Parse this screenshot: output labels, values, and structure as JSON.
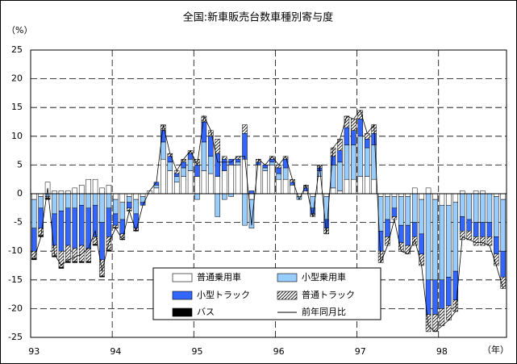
{
  "chart_data": {
    "type": "bar",
    "stacked": true,
    "title": "全国:新車販売台数車種別寄与度",
    "y_label": "（%）",
    "x_label": "（年）",
    "categories": [
      "93",
      null,
      null,
      null,
      null,
      null,
      null,
      null,
      null,
      null,
      null,
      null,
      "94",
      null,
      null,
      null,
      null,
      null,
      null,
      null,
      null,
      null,
      null,
      null,
      "95",
      null,
      null,
      null,
      null,
      null,
      null,
      null,
      null,
      null,
      null,
      null,
      "96",
      null,
      null,
      null,
      null,
      null,
      null,
      null,
      null,
      null,
      null,
      null,
      "97",
      null,
      null,
      null,
      null,
      null,
      null,
      null,
      null,
      null,
      null,
      null,
      "98",
      null,
      null,
      null,
      null,
      null,
      null,
      null,
      null,
      null
    ],
    "ylim": [
      -25,
      25
    ],
    "yticks": [
      -25,
      -20,
      -15,
      -10,
      -5,
      0,
      5,
      10,
      15,
      20,
      25
    ],
    "grid": true,
    "series": [
      {
        "name": "普通乗用車",
        "color": "#ffffff",
        "values": [
          -1,
          -0.5,
          2,
          0.5,
          0.5,
          0.5,
          1,
          1.5,
          2.5,
          2.5,
          1,
          1.5,
          -1,
          -1.5,
          -0.5,
          -1,
          -0.5,
          0.5,
          1,
          6,
          4,
          2,
          3,
          4,
          3,
          4,
          3.5,
          3,
          4,
          5,
          5,
          6,
          -1,
          5,
          4,
          5,
          2.5,
          2.5,
          1.5,
          -0.5,
          0.5,
          -0.5,
          3,
          -0.5,
          1,
          0.5,
          2.5,
          2.5,
          3,
          3,
          2.5,
          -0.5,
          -0.5,
          -0.5,
          -0.5,
          -0.5,
          1,
          -1,
          1,
          -1,
          -2,
          -2,
          -1.5,
          0.5,
          0,
          0.5,
          0.5,
          0,
          -0.5,
          -1
        ]
      },
      {
        "name": "小型乗用車",
        "color": "#99ccff",
        "values": [
          -5,
          -2,
          -0.5,
          -3.5,
          -3,
          -2.5,
          -2.5,
          -2,
          -2.5,
          -2,
          -5,
          -2.5,
          -2.5,
          -3,
          -1,
          -2.5,
          -1,
          0,
          0.5,
          3,
          1.5,
          1,
          1.5,
          2,
          -1,
          5,
          3,
          -4,
          -1,
          -0.5,
          0.5,
          -5.5,
          -5,
          0,
          0.5,
          0.5,
          1,
          2,
          0,
          -0.5,
          0,
          -2,
          1,
          -4,
          4,
          5,
          6,
          6,
          7,
          5,
          6,
          -6,
          -4,
          -2,
          -5,
          -5,
          -5,
          -6,
          -15,
          -14,
          -13,
          -12.5,
          -12,
          -4,
          -4.5,
          -5,
          -5,
          -5,
          -7,
          -9
        ]
      },
      {
        "name": "小型トラック",
        "color": "#3366ff",
        "values": [
          -4,
          -3.5,
          0,
          -5.5,
          -7,
          -6.5,
          -7,
          -7,
          -7,
          -5.5,
          -6.5,
          -5,
          -2,
          -2.5,
          -1,
          -2.5,
          -0.5,
          0,
          0.5,
          2,
          1,
          0.5,
          1,
          1,
          2,
          3.5,
          3.5,
          4,
          2,
          1,
          0.5,
          4.5,
          0.5,
          0.5,
          0.5,
          0.5,
          1,
          1.5,
          0.5,
          0,
          0.5,
          -1,
          0.5,
          -1.5,
          1.5,
          2,
          3,
          2.5,
          3,
          1.5,
          2,
          -3.5,
          -3,
          -1.5,
          -3,
          -3.5,
          -2.5,
          -3.5,
          -6,
          -6,
          -5,
          -5,
          -5,
          -2.5,
          -2,
          -2.5,
          -2.5,
          -2.5,
          -3,
          -4.5
        ]
      },
      {
        "name": "普通トラック",
        "color": "#ffffff",
        "hatch": true,
        "values": [
          -1.3,
          -1.3,
          -0.3,
          -1.8,
          -2.8,
          -2.8,
          -2.3,
          -2.8,
          -2.3,
          -1.3,
          -2.8,
          -2.3,
          -0.4,
          -0.9,
          -0.4,
          -0.4,
          0,
          0,
          0,
          1,
          0.5,
          0.5,
          0.5,
          0.5,
          1,
          1,
          1,
          2.5,
          0.5,
          0,
          0.5,
          1.5,
          0,
          0.5,
          0,
          0.5,
          0.5,
          0.5,
          0.5,
          0,
          0.5,
          -0.5,
          0.5,
          -1,
          1.5,
          2,
          2,
          2,
          1.5,
          1,
          1.5,
          -2,
          -1.5,
          -0.5,
          -1.5,
          -1.5,
          -1.5,
          -2,
          -3,
          -3,
          -3,
          -2.5,
          -2,
          -1.5,
          -1.5,
          -1.5,
          -1.5,
          -1.5,
          -2,
          -2
        ]
      },
      {
        "name": "バス",
        "color": "#000000",
        "values": [
          -0.2,
          -0.2,
          -0.2,
          -0.2,
          -0.2,
          -0.2,
          -0.2,
          -0.2,
          -0.2,
          -0.2,
          -0.2,
          -0.2,
          -0.1,
          -0.1,
          -0.1,
          -0.1,
          0,
          0,
          0,
          0,
          0,
          0,
          0,
          0,
          0,
          0,
          0,
          0,
          0,
          0,
          0,
          0,
          0,
          0,
          0,
          0,
          0,
          0,
          0,
          0,
          0,
          0,
          0,
          0,
          0,
          0,
          0,
          0,
          0,
          0,
          0,
          0,
          0,
          0,
          0,
          0,
          0,
          0,
          0,
          0,
          0,
          0,
          0,
          0,
          0,
          0,
          0,
          0,
          0,
          0
        ]
      }
    ],
    "line": {
      "name": "前年同月比",
      "color": "#000000",
      "values": [
        -11.5,
        -7.5,
        1,
        -10.5,
        -12.5,
        -11.5,
        -11,
        -10.5,
        -9.5,
        -6.5,
        -13.5,
        -8.5,
        -6,
        -8,
        -3,
        -6.5,
        -2,
        0.5,
        2,
        12,
        7,
        4,
        6,
        7.5,
        5,
        13.5,
        11,
        5.5,
        5.5,
        5.5,
        6.5,
        6.5,
        -5.5,
        6,
        5,
        6.5,
        5,
        6.5,
        2.5,
        -1,
        1.5,
        -4,
        5,
        -7,
        8,
        9.5,
        13.5,
        13,
        14.5,
        10.5,
        12,
        -12,
        -9,
        -4.5,
        -10,
        -10.5,
        -8,
        -12.5,
        -23,
        -24,
        -23,
        -22,
        -20.5,
        -7.5,
        -8,
        -8.5,
        -8.5,
        -9,
        -12.5,
        -16.5
      ]
    }
  }
}
